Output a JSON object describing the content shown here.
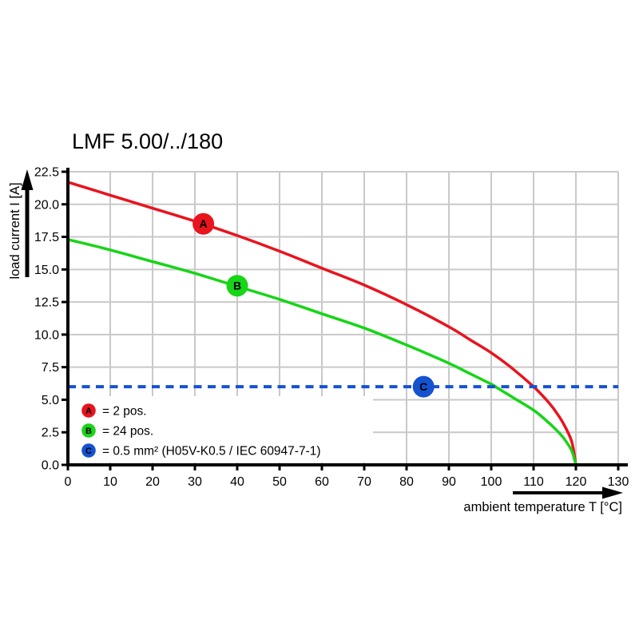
{
  "title": "LMF 5.00/../180",
  "colors": {
    "red": "#e8141e",
    "green": "#17d517",
    "blue": "#1552d0",
    "grid": "#c9c9c9",
    "axis": "#000000",
    "background": "#ffffff",
    "marker_letter": "#ffffff"
  },
  "chart_data": {
    "type": "line",
    "title": "LMF 5.00/../180",
    "xlabel": "ambient temperature T [°C]",
    "ylabel": "load current I [A]",
    "xlim": [
      0,
      130
    ],
    "ylim": [
      0,
      22.5
    ],
    "grid": true,
    "legend_position": "bottom-left-inside",
    "x_ticks": [
      0,
      10,
      20,
      30,
      40,
      50,
      60,
      70,
      80,
      90,
      100,
      110,
      120,
      130
    ],
    "x_tick_labels": [
      "0",
      "10",
      "20",
      "30",
      "40",
      "50",
      "60",
      "70",
      "80",
      "90",
      "100",
      "110",
      "120",
      "130"
    ],
    "y_ticks": [
      0,
      2.5,
      5,
      7.5,
      10,
      12.5,
      15,
      17.5,
      20,
      22.5
    ],
    "y_tick_labels": [
      "0.0",
      "2.5",
      "5.0",
      "7.5",
      "10.0",
      "12.5",
      "15.0",
      "17.5",
      "20.0",
      "22.5"
    ],
    "series": [
      {
        "name": "A",
        "legend_label": "= 2 pos.",
        "color": "#e8141e",
        "line_style": "solid",
        "marker": {
          "x": 32,
          "y": 18.5,
          "letter": "A"
        },
        "points": [
          [
            0,
            21.7
          ],
          [
            10,
            20.7
          ],
          [
            20,
            19.7
          ],
          [
            30,
            18.7
          ],
          [
            40,
            17.6
          ],
          [
            50,
            16.4
          ],
          [
            60,
            15.1
          ],
          [
            70,
            13.8
          ],
          [
            80,
            12.3
          ],
          [
            90,
            10.6
          ],
          [
            95,
            9.6
          ],
          [
            100,
            8.6
          ],
          [
            105,
            7.4
          ],
          [
            110,
            6.0
          ],
          [
            113,
            5.0
          ],
          [
            115,
            4.2
          ],
          [
            117,
            3.2
          ],
          [
            119,
            1.8
          ],
          [
            120,
            0
          ]
        ]
      },
      {
        "name": "B",
        "legend_label": "= 24 pos.",
        "color": "#17d517",
        "line_style": "solid",
        "marker": {
          "x": 40,
          "y": 13.75,
          "letter": "B"
        },
        "points": [
          [
            0,
            17.3
          ],
          [
            10,
            16.5
          ],
          [
            20,
            15.6
          ],
          [
            30,
            14.7
          ],
          [
            40,
            13.7
          ],
          [
            50,
            12.7
          ],
          [
            60,
            11.6
          ],
          [
            70,
            10.5
          ],
          [
            80,
            9.2
          ],
          [
            90,
            7.8
          ],
          [
            95,
            7.0
          ],
          [
            100,
            6.2
          ],
          [
            101,
            6.0
          ],
          [
            105,
            5.2
          ],
          [
            110,
            4.2
          ],
          [
            113,
            3.4
          ],
          [
            115,
            2.8
          ],
          [
            117,
            2.1
          ],
          [
            119,
            1.1
          ],
          [
            120,
            0
          ]
        ]
      },
      {
        "name": "C",
        "legend_label": "= 0.5 mm² (H05V-K0.5 / IEC 60947-7-1)",
        "color": "#1552d0",
        "line_style": "dashed",
        "marker": {
          "x": 84,
          "y": 6.0,
          "letter": "C"
        },
        "points": [
          [
            0,
            6.0
          ],
          [
            130,
            6.0
          ]
        ]
      }
    ]
  }
}
